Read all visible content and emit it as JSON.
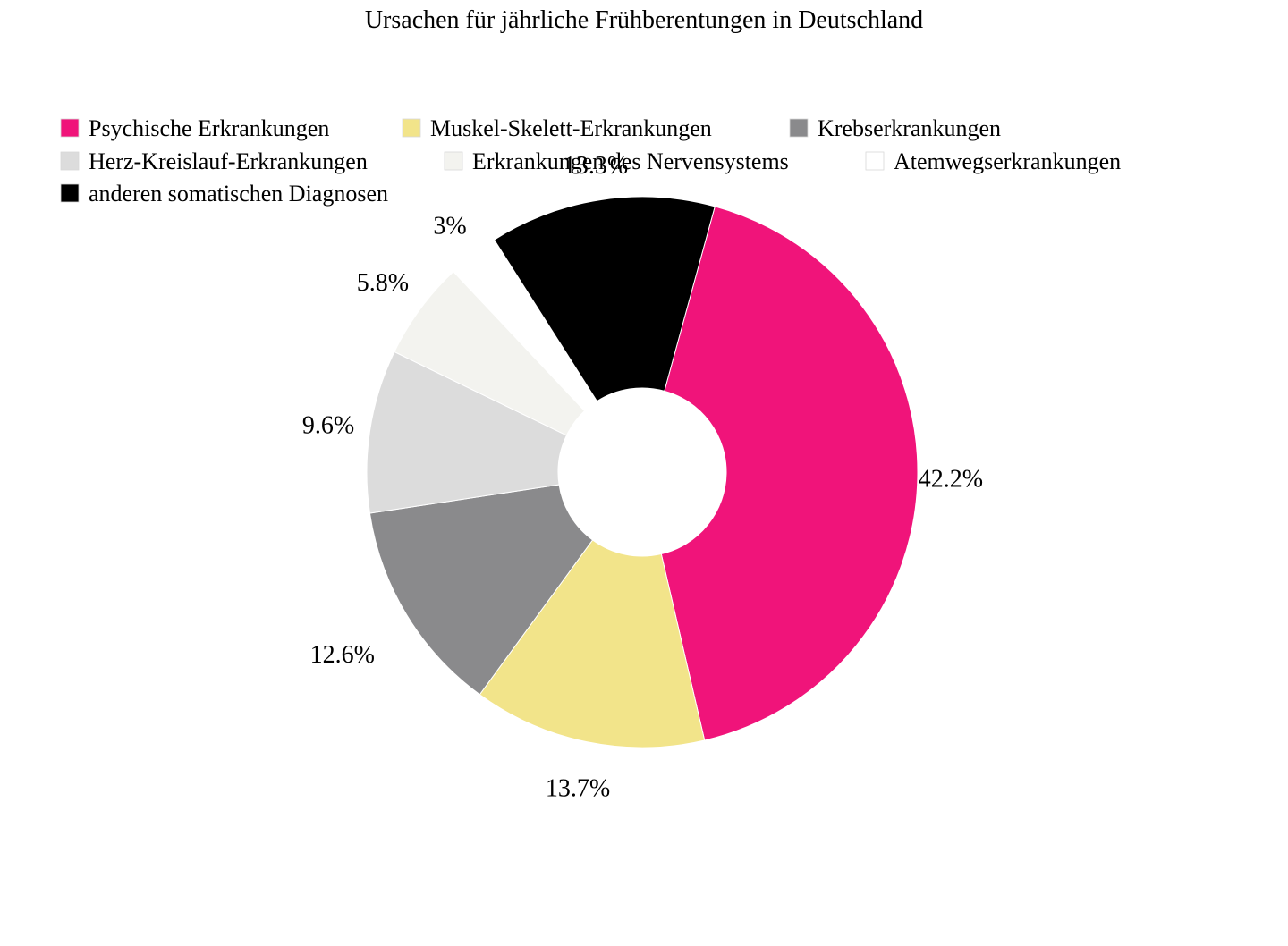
{
  "chart_data": {
    "type": "pie",
    "title": "Ursachen für jährliche Frühberentungen in Deutschland",
    "donut": true,
    "legend_position": "top",
    "categories": [
      "Psychische Erkrankungen",
      "Muskel-Skelett-Erkrankungen",
      "Krebserkrankungen",
      "Herz-Kreislauf-Erkrankungen",
      "Erkrankungen des Nervensystems",
      "Atemwegserkrankungen",
      "anderen somatischen Diagnosen"
    ],
    "values": [
      42.2,
      13.7,
      12.6,
      9.6,
      5.8,
      3,
      13.3
    ],
    "labels": [
      "42.2%",
      "13.7%",
      "12.6%",
      "9.6%",
      "5.8%",
      "3%",
      "13.3%"
    ],
    "colors": [
      "#f0147a",
      "#f2e48a",
      "#8a8a8c",
      "#dcdcdc",
      "#f3f3ef",
      "#ffffff",
      "#000000"
    ]
  }
}
